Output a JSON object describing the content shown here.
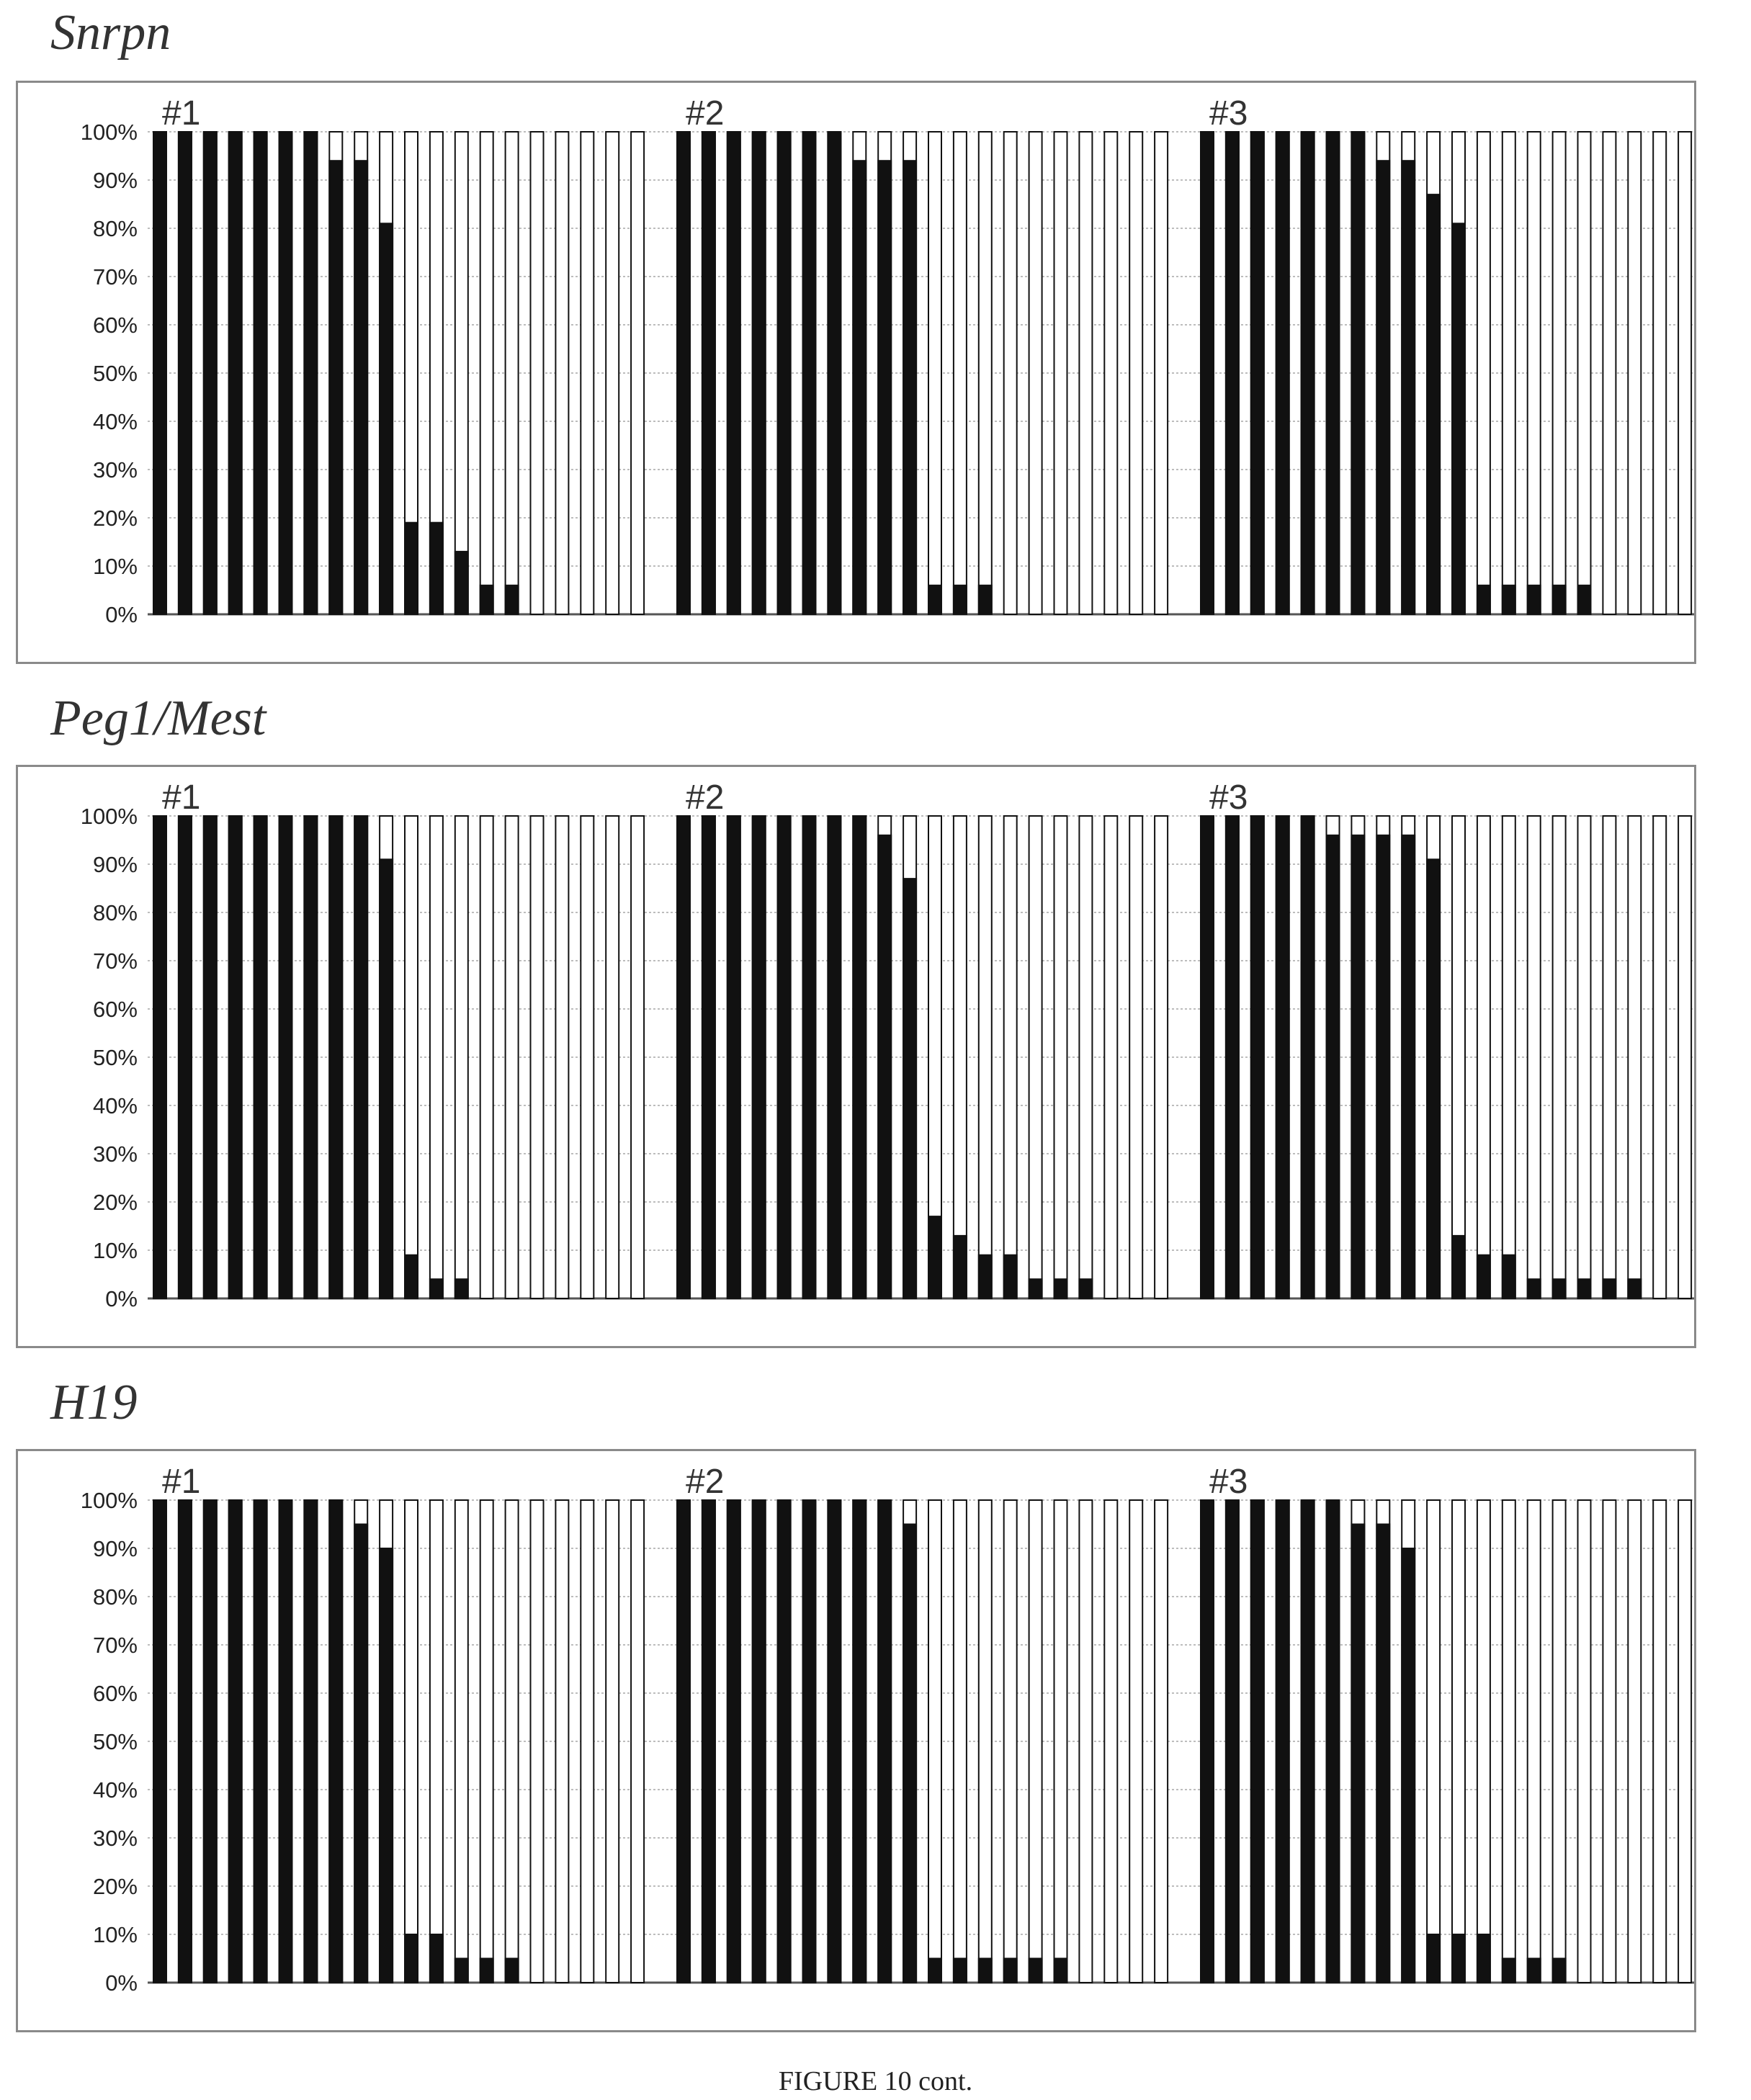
{
  "figure_caption": "FIGURE 10 cont.",
  "colors": {
    "methylated": "#111111",
    "unmethylated": "#ffffff",
    "bar_outline": "#111111",
    "gridline": "#bdbdbd",
    "axis": "#555555"
  },
  "chart_data": [
    {
      "type": "bar",
      "stacked": true,
      "title": "Snrpn",
      "xlabel": "",
      "ylabel": "",
      "ylim": [
        0,
        100
      ],
      "yticks": [
        "0%",
        "10%",
        "20%",
        "30%",
        "40%",
        "50%",
        "60%",
        "70%",
        "80%",
        "90%",
        "100%"
      ],
      "grid": true,
      "legend": "none",
      "groups": [
        {
          "label": "#1",
          "values": [
            100,
            100,
            100,
            100,
            100,
            100,
            100,
            94,
            94,
            81,
            19,
            19,
            13,
            6,
            6,
            0,
            0,
            0,
            0,
            0
          ]
        },
        {
          "label": "#2",
          "values": [
            100,
            100,
            100,
            100,
            100,
            100,
            100,
            94,
            94,
            94,
            6,
            6,
            6,
            0,
            0,
            0,
            0,
            0,
            0,
            0
          ]
        },
        {
          "label": "#3",
          "values": [
            100,
            100,
            100,
            100,
            100,
            100,
            100,
            94,
            94,
            87,
            81,
            6,
            6,
            6,
            6,
            6,
            0,
            0,
            0,
            0
          ]
        }
      ]
    },
    {
      "type": "bar",
      "stacked": true,
      "title": "Peg1/Mest",
      "xlabel": "",
      "ylabel": "",
      "ylim": [
        0,
        100
      ],
      "yticks": [
        "0%",
        "10%",
        "20%",
        "30%",
        "40%",
        "50%",
        "60%",
        "70%",
        "80%",
        "90%",
        "100%"
      ],
      "grid": true,
      "legend": "none",
      "groups": [
        {
          "label": "#1",
          "values": [
            100,
            100,
            100,
            100,
            100,
            100,
            100,
            100,
            100,
            91,
            9,
            4,
            4,
            0,
            0,
            0,
            0,
            0,
            0,
            0
          ]
        },
        {
          "label": "#2",
          "values": [
            100,
            100,
            100,
            100,
            100,
            100,
            100,
            100,
            96,
            87,
            17,
            13,
            9,
            9,
            4,
            4,
            4,
            0,
            0,
            0
          ]
        },
        {
          "label": "#3",
          "values": [
            100,
            100,
            100,
            100,
            100,
            96,
            96,
            96,
            96,
            91,
            13,
            9,
            9,
            4,
            4,
            4,
            4,
            4,
            0,
            0
          ]
        }
      ]
    },
    {
      "type": "bar",
      "stacked": true,
      "title": "H19",
      "xlabel": "",
      "ylabel": "",
      "ylim": [
        0,
        100
      ],
      "yticks": [
        "0%",
        "10%",
        "20%",
        "30%",
        "40%",
        "50%",
        "60%",
        "70%",
        "80%",
        "90%",
        "100%"
      ],
      "grid": true,
      "legend": "none",
      "groups": [
        {
          "label": "#1",
          "values": [
            100,
            100,
            100,
            100,
            100,
            100,
            100,
            100,
            95,
            90,
            10,
            10,
            5,
            5,
            5,
            0,
            0,
            0,
            0,
            0
          ]
        },
        {
          "label": "#2",
          "values": [
            100,
            100,
            100,
            100,
            100,
            100,
            100,
            100,
            100,
            95,
            5,
            5,
            5,
            5,
            5,
            5,
            0,
            0,
            0,
            0
          ]
        },
        {
          "label": "#3",
          "values": [
            100,
            100,
            100,
            100,
            100,
            100,
            95,
            95,
            90,
            10,
            10,
            10,
            5,
            5,
            5,
            0,
            0,
            0,
            0,
            0
          ]
        }
      ]
    }
  ]
}
